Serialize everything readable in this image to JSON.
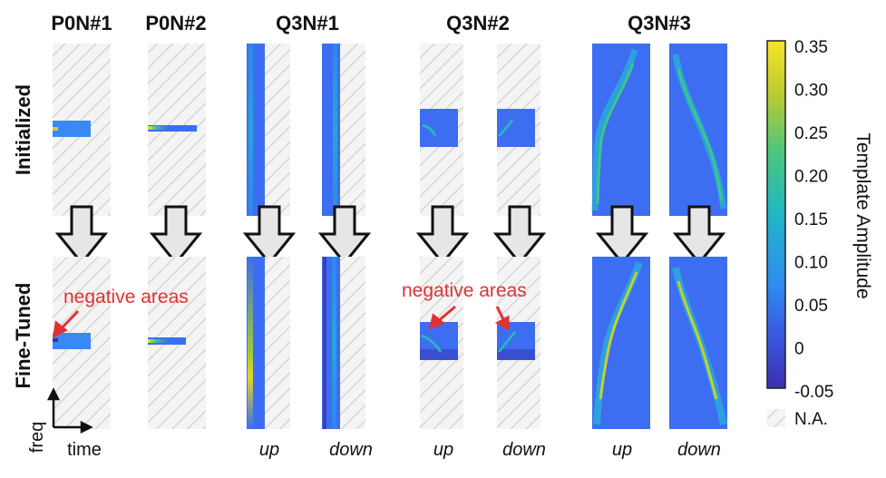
{
  "columns": {
    "p0n1": "P0N#1",
    "p0n2": "P0N#2",
    "q3n1": "Q3N#1",
    "q3n2": "Q3N#2",
    "q3n3": "Q3N#3"
  },
  "rows": {
    "initialized": "Initialized",
    "fine_tuned": "Fine-Tuned"
  },
  "sub_labels": {
    "up": "up",
    "down": "down"
  },
  "annotations": {
    "left": "negative areas",
    "right": "negative areas"
  },
  "axes": {
    "freq": "freq",
    "time": "time"
  },
  "colorbar": {
    "title": "Template Amplitude",
    "ticks": [
      "0.35",
      "0.30",
      "0.25",
      "0.20",
      "0.15",
      "0.10",
      "0.05",
      "0",
      "-0.05"
    ],
    "na_label": "N.A.",
    "colors": [
      "#3b2fae",
      "#3a73f2",
      "#22b5c8",
      "#47c77f",
      "#bfc92e",
      "#f4e425"
    ]
  },
  "colors": {
    "hatch_bg": "#f4f4f4",
    "hatch_line": "#d8d8d8",
    "panel_blue": "#3d6df0",
    "annotation": "#e03232",
    "arrow_fill": "#e6e6e6"
  }
}
